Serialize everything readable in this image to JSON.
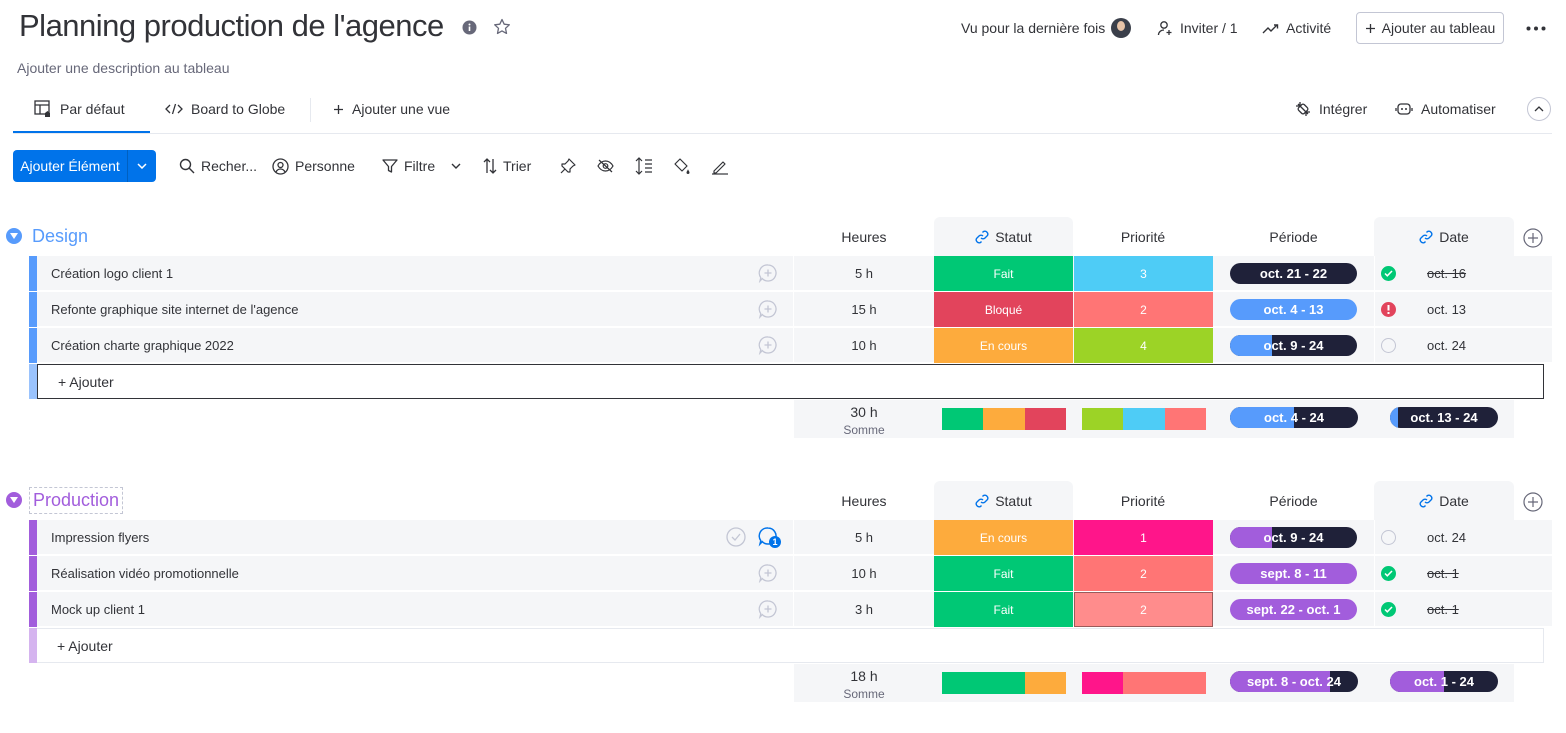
{
  "board": {
    "title": "Planning production de l'agence",
    "description": "Ajouter une description au tableau",
    "last_seen": "Vu pour la dernière fois",
    "invite": "Inviter / 1",
    "activity": "Activité",
    "add_to_board": "Ajouter au tableau"
  },
  "views": {
    "tabs": [
      {
        "label": "Par défaut",
        "icon": "table-home-icon"
      },
      {
        "label": "Board to Globe",
        "icon": "code-icon"
      },
      {
        "label": "Ajouter une vue",
        "icon": "plus-icon"
      }
    ],
    "integrate": "Intégrer",
    "automate": "Automatiser"
  },
  "toolbar": {
    "add_item": "Ajouter Élément",
    "search": "Recher...",
    "person": "Personne",
    "filter": "Filtre",
    "sort": "Trier"
  },
  "columns": {
    "hours": "Heures",
    "status": "Statut",
    "priority": "Priorité",
    "period": "Période",
    "date": "Date"
  },
  "colors": {
    "done": "#00c875",
    "stuck": "#e2445c",
    "working": "#fdab3d",
    "design": "#579bfc",
    "production": "#a25ddc",
    "dark": "#1f2139"
  },
  "groups": [
    {
      "title": "Design",
      "color": "#579bfc",
      "add_label": "+ Ajouter",
      "rows": [
        {
          "name": "Création logo client 1",
          "hours": "5 h",
          "status": "Fait",
          "priority": "3",
          "period": "oct. 21 - 22",
          "period_progress": 0,
          "date": "oct. 16",
          "date_status": "done"
        },
        {
          "name": "Refonte graphique site internet de l'agence",
          "hours": "15 h",
          "status": "Bloqué",
          "priority": "2",
          "period": "oct. 4 - 13",
          "period_progress": 1,
          "date": "oct. 13",
          "date_status": "alert"
        },
        {
          "name": "Création charte graphique 2022",
          "hours": "10 h",
          "status": "En cours",
          "priority": "4",
          "period": "oct. 9 - 24",
          "period_progress": 0.33,
          "date": "oct. 24",
          "date_status": "empty"
        }
      ],
      "summary": {
        "hours": "30 h",
        "label": "Somme",
        "period": "oct. 4 - 24",
        "period_progress": 0.5,
        "date": "oct. 13 - 24",
        "date_progress": 0.07
      }
    },
    {
      "title": "Production",
      "color": "#a25ddc",
      "add_label": "+ Ajouter",
      "rows": [
        {
          "name": "Impression flyers",
          "hours": "5 h",
          "status": "En cours",
          "priority": "1",
          "period": "oct. 9 - 24",
          "period_progress": 0.33,
          "date": "oct. 24",
          "date_status": "empty",
          "updates": "1"
        },
        {
          "name": "Réalisation vidéo promotionnelle",
          "hours": "10 h",
          "status": "Fait",
          "priority": "2",
          "period": "sept. 8 - 11",
          "period_progress": 1,
          "date": "oct. 1",
          "date_status": "done"
        },
        {
          "name": "Mock up client 1",
          "hours": "3 h",
          "status": "Fait",
          "priority": "2",
          "period": "sept. 22 - oct. 1",
          "period_progress": 1,
          "date": "oct. 1",
          "date_status": "done"
        }
      ],
      "summary": {
        "hours": "18 h",
        "label": "Somme",
        "period": "sept. 8 - oct. 24",
        "period_progress": 0.78,
        "date": "oct. 1 - 24",
        "date_progress": 0.5
      }
    }
  ]
}
